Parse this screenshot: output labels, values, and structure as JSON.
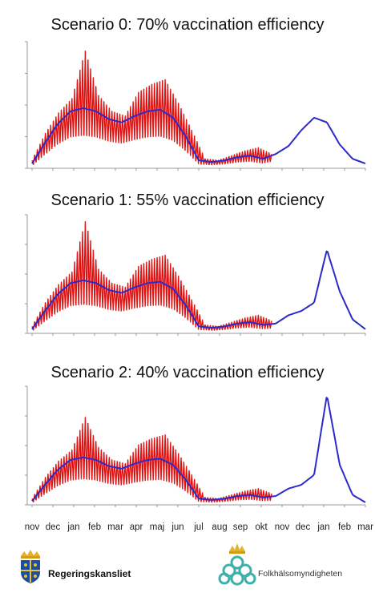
{
  "chart_data": [
    {
      "type": "line",
      "title": "Scenario 0: 70% vaccination efficiency",
      "x_tick_labels": [
        "nov",
        "dec",
        "jan",
        "feb",
        "mar",
        "apr",
        "maj",
        "jun",
        "jul",
        "aug",
        "sep",
        "okt",
        "nov",
        "dec",
        "jan",
        "feb",
        "mar"
      ],
      "series": [
        {
          "color": "#2b2bcc",
          "values": [
            0.3,
            1.6,
            2.8,
            3.6,
            3.8,
            3.6,
            3.1,
            2.9,
            3.3,
            3.6,
            3.7,
            3.2,
            2.0,
            0.5,
            0.4,
            0.5,
            0.7,
            0.8,
            0.6,
            0.9,
            1.4,
            2.4,
            3.2,
            2.9,
            1.5,
            0.6,
            0.3
          ]
        },
        {
          "color": "#e01010",
          "values": [
            0.5,
            2.2,
            3.5,
            4.4,
            7.4,
            4.6,
            3.6,
            3.3,
            4.8,
            5.3,
            5.6,
            4.1,
            2.4,
            0.6,
            0.5,
            0.8,
            1.1,
            1.3,
            0.9
          ]
        }
      ],
      "ylim": [
        0,
        8
      ]
    },
    {
      "type": "line",
      "title": "Scenario 1: 55% vaccination efficiency",
      "x_tick_labels": [
        "nov",
        "dec",
        "jan",
        "feb",
        "mar",
        "apr",
        "maj",
        "jun",
        "jul",
        "aug",
        "sep",
        "okt",
        "nov",
        "dec",
        "jan",
        "feb",
        "mar"
      ],
      "series": [
        {
          "color": "#2b2bcc",
          "values": [
            0.3,
            1.6,
            2.8,
            3.6,
            3.8,
            3.6,
            3.1,
            2.9,
            3.3,
            3.6,
            3.7,
            3.2,
            2.0,
            0.5,
            0.4,
            0.5,
            0.7,
            0.8,
            0.6,
            0.7,
            1.3,
            1.6,
            2.2,
            6.0,
            3.0,
            1.0,
            0.3
          ]
        },
        {
          "color": "#e01010",
          "values": [
            0.5,
            2.2,
            3.5,
            4.4,
            8.0,
            4.6,
            3.6,
            3.3,
            4.8,
            5.3,
            5.6,
            4.1,
            2.4,
            0.6,
            0.5,
            0.8,
            1.1,
            1.3,
            0.9
          ]
        }
      ],
      "ylim": [
        0,
        8.5
      ]
    },
    {
      "type": "line",
      "title": "Scenario 2: 40% vaccination efficiency",
      "x_tick_labels": [
        "nov",
        "dec",
        "jan",
        "feb",
        "mar",
        "apr",
        "maj",
        "jun",
        "jul",
        "aug",
        "sep",
        "okt",
        "nov",
        "dec",
        "jan",
        "feb",
        "mar"
      ],
      "series": [
        {
          "color": "#2b2bcc",
          "values": [
            0.3,
            1.6,
            2.8,
            3.6,
            3.8,
            3.6,
            3.1,
            2.9,
            3.3,
            3.6,
            3.7,
            3.2,
            2.0,
            0.5,
            0.4,
            0.5,
            0.7,
            0.8,
            0.6,
            0.7,
            1.3,
            1.6,
            2.4,
            8.8,
            3.2,
            0.8,
            0.2
          ]
        },
        {
          "color": "#e01010",
          "values": [
            0.5,
            2.2,
            3.5,
            4.4,
            7.0,
            4.6,
            3.6,
            3.3,
            4.8,
            5.3,
            5.6,
            4.1,
            2.4,
            0.6,
            0.5,
            0.8,
            1.1,
            1.3,
            0.9
          ]
        }
      ],
      "ylim": [
        0,
        9.5
      ]
    }
  ],
  "x_axis_labels": [
    "nov",
    "dec",
    "jan",
    "feb",
    "mar",
    "apr",
    "maj",
    "jun",
    "jul",
    "aug",
    "sep",
    "okt",
    "nov",
    "dec",
    "jan",
    "feb",
    "mar"
  ],
  "logos": {
    "left": {
      "text": "Regeringskansliet",
      "icon": "crown-shield-icon"
    },
    "right": {
      "text": "Folkhälsomyndigheten",
      "icon": "crown-knot-icon"
    }
  },
  "colors": {
    "model_line": "#2b2bcc",
    "observed_line": "#e01010",
    "axis": "#999999"
  }
}
